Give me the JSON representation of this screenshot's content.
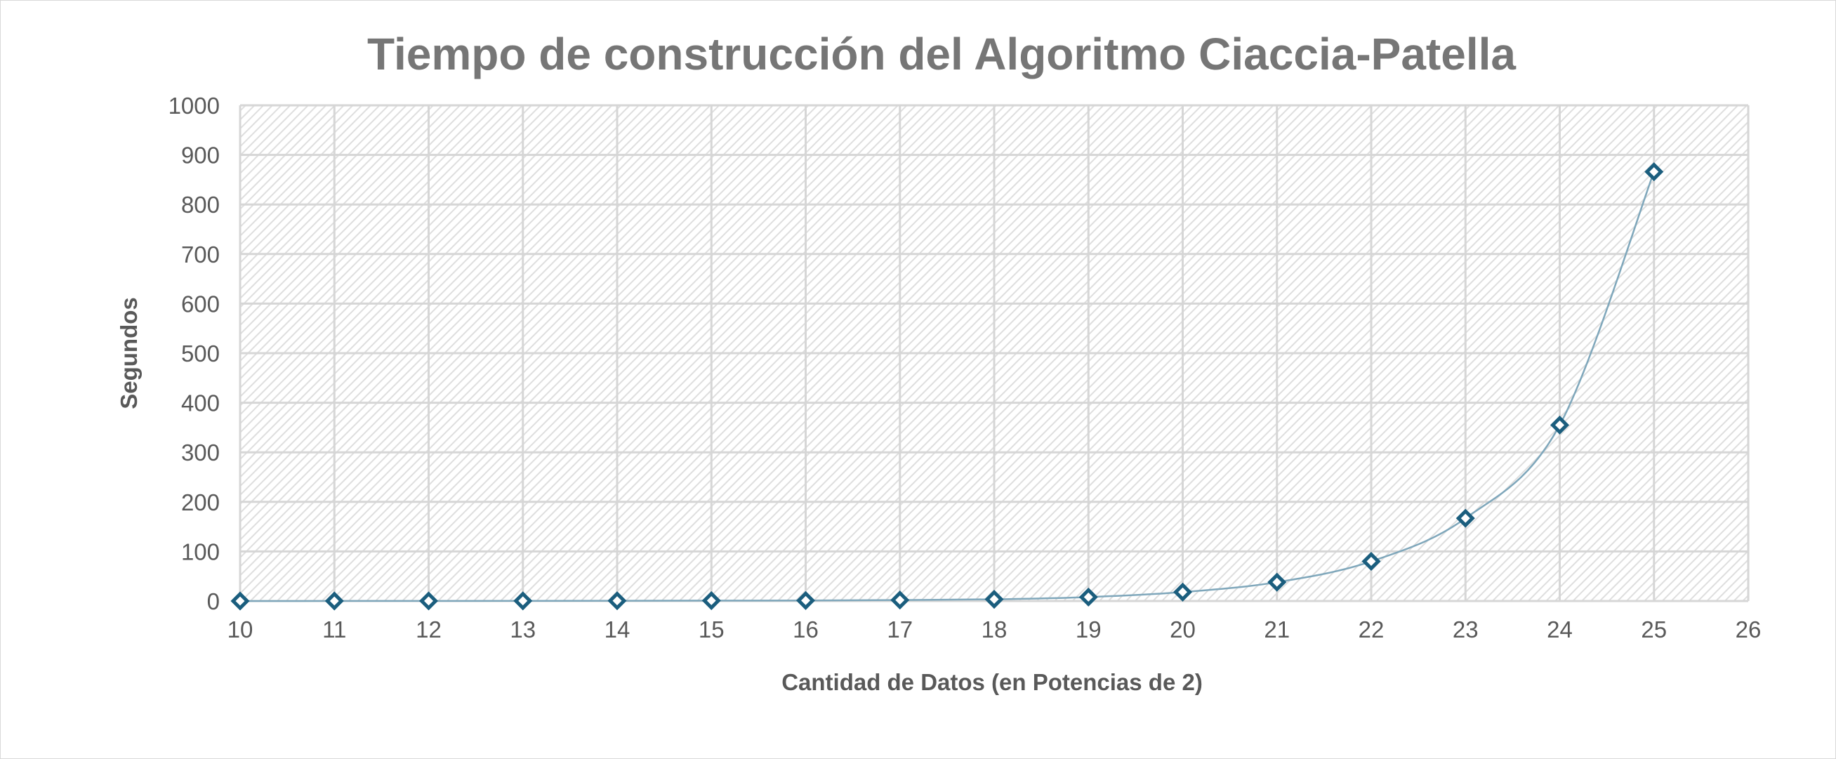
{
  "chart_data": {
    "type": "scatter",
    "title": "Tiempo de construcción del Algoritmo Ciaccia-Patella",
    "xlabel": "Cantidad de Datos (en Potencias de 2)",
    "ylabel": "Segundos",
    "xlim": [
      10,
      26
    ],
    "ylim": [
      0,
      1000
    ],
    "x_ticks": [
      10,
      11,
      12,
      13,
      14,
      15,
      16,
      17,
      18,
      19,
      20,
      21,
      22,
      23,
      24,
      25,
      26
    ],
    "y_ticks": [
      0,
      100,
      200,
      300,
      400,
      500,
      600,
      700,
      800,
      900,
      1000
    ],
    "grid": true,
    "legend": "none",
    "line_style": "smooth",
    "marker": "diamond-outline",
    "colors": {
      "line": "#7fa7bb",
      "marker": "#1b5e7e",
      "grid": "#d6d6d6",
      "plot_pattern": "#dedede"
    },
    "series": [
      {
        "x": [
          10,
          11,
          12,
          13,
          14,
          15,
          16,
          17,
          18,
          19,
          20,
          21,
          22,
          23,
          24,
          25
        ],
        "y": [
          0.05,
          0.1,
          0.2,
          0.3,
          0.5,
          0.8,
          1,
          2,
          3.5,
          8,
          18,
          38,
          80,
          167,
          355,
          866
        ]
      }
    ]
  }
}
